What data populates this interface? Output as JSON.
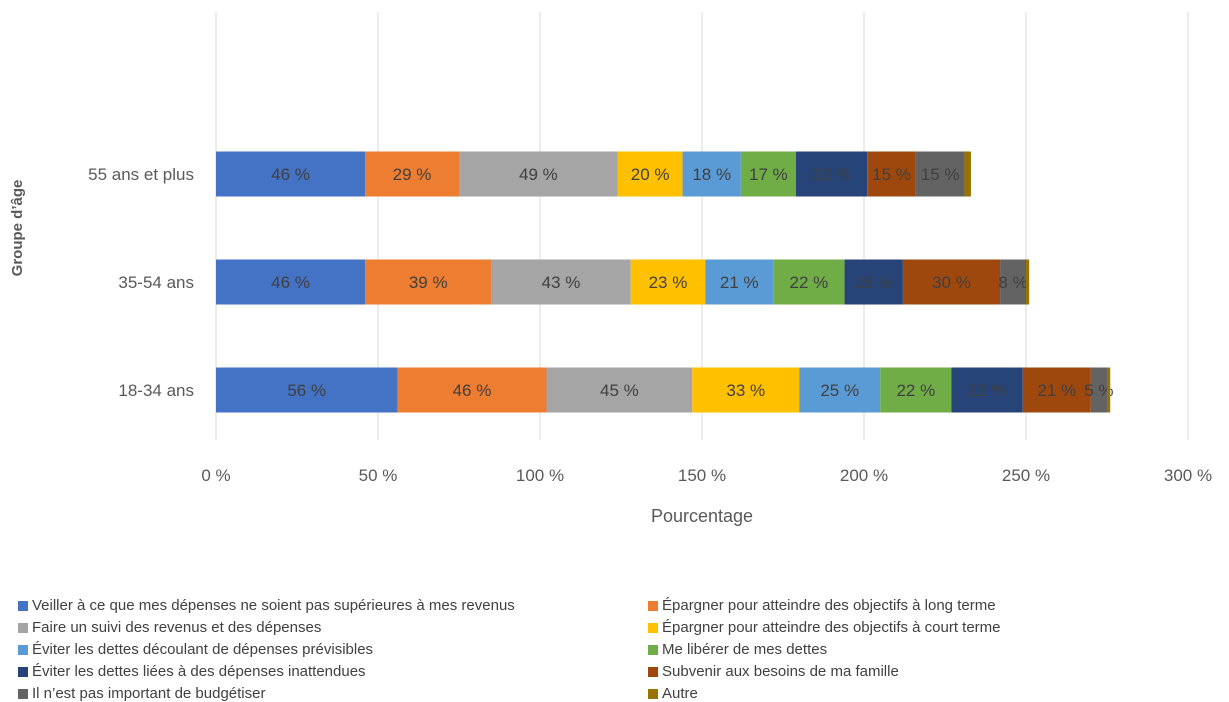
{
  "chart_data": {
    "type": "bar",
    "orientation": "horizontal",
    "stacked": true,
    "categories": [
      "55 ans et plus",
      "35-54 ans",
      "18-34 ans"
    ],
    "xlabel": "Pourcentage",
    "ylabel": "Groupe d’âge",
    "xlim": [
      0,
      300
    ],
    "x_ticks": [
      0,
      50,
      100,
      150,
      200,
      250,
      300
    ],
    "x_tick_labels": [
      "0 %",
      "50 %",
      "100 %",
      "150 %",
      "200 %",
      "250 %",
      "300 %"
    ],
    "grid": "vertical",
    "legend_position": "bottom",
    "series": [
      {
        "name": "Veiller à ce que mes dépenses ne soient pas supérieures à mes revenus",
        "color": "#4472C4",
        "values": [
          46,
          46,
          56
        ],
        "labels": [
          "46 %",
          "46 %",
          "56 %"
        ]
      },
      {
        "name": "Épargner pour atteindre des objectifs à long terme",
        "color": "#ED7D31",
        "values": [
          29,
          39,
          46
        ],
        "labels": [
          "29 %",
          "39 %",
          "46 %"
        ]
      },
      {
        "name": "Faire un suivi des revenus et des dépenses",
        "color": "#A5A5A5",
        "values": [
          49,
          43,
          45
        ],
        "labels": [
          "49 %",
          "43 %",
          "45 %"
        ]
      },
      {
        "name": "Épargner pour atteindre des objectifs à court terme",
        "color": "#FFC000",
        "values": [
          20,
          23,
          33
        ],
        "labels": [
          "20 %",
          "23 %",
          "33 %"
        ]
      },
      {
        "name": "Éviter les dettes découlant de dépenses prévisibles",
        "color": "#5B9BD5",
        "values": [
          18,
          21,
          25
        ],
        "labels": [
          "18 %",
          "21 %",
          "25 %"
        ]
      },
      {
        "name": "Me libérer de mes dettes",
        "color": "#70AD47",
        "values": [
          17,
          22,
          22
        ],
        "labels": [
          "17 %",
          "22 %",
          "22 %"
        ]
      },
      {
        "name": "Éviter les dettes liées à des dépenses inattendues",
        "color": "#264478",
        "values": [
          22,
          18,
          22
        ],
        "labels": [
          "22 %",
          "18 %",
          "22 %"
        ]
      },
      {
        "name": "Subvenir aux besoins de ma famille",
        "color": "#9E480E",
        "values": [
          15,
          30,
          21
        ],
        "labels": [
          "15 %",
          "30 %",
          "21 %"
        ]
      },
      {
        "name": "Il n’est pas important de budgétiser",
        "color": "#636363",
        "values": [
          15,
          8,
          5
        ],
        "labels": [
          "15 %",
          "8 %",
          "5 %"
        ]
      },
      {
        "name": "Autre",
        "color": "#997300",
        "values": [
          2,
          1,
          1
        ],
        "labels": [
          "",
          "",
          ""
        ]
      }
    ]
  }
}
